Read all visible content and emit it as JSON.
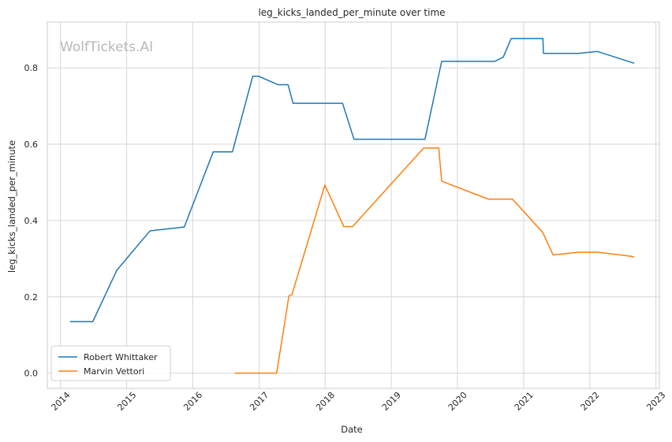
{
  "watermark": "WolfTickets.AI",
  "chart_data": {
    "type": "line",
    "title": "leg_kicks_landed_per_minute over time",
    "xlabel": "Date",
    "ylabel": "leg_kicks_landed_per_minute",
    "xlim": [
      "2013-10-20",
      "2023-01-20"
    ],
    "ylim": [
      -0.04,
      0.92
    ],
    "x_ticks": [
      "2014",
      "2015",
      "2016",
      "2017",
      "2018",
      "2019",
      "2020",
      "2021",
      "2022",
      "2023"
    ],
    "y_ticks": [
      "0.0",
      "0.2",
      "0.4",
      "0.6",
      "0.8"
    ],
    "grid": true,
    "legend_position": "lower-left",
    "series": [
      {
        "name": "Robert Whittaker",
        "color": "#1f77b4",
        "points": [
          [
            "2014-02-22",
            0.135
          ],
          [
            "2014-06-28",
            0.135
          ],
          [
            "2014-11-08",
            0.27
          ],
          [
            "2015-05-10",
            0.373
          ],
          [
            "2015-11-15",
            0.383
          ],
          [
            "2016-04-23",
            0.58
          ],
          [
            "2016-08-07",
            0.58
          ],
          [
            "2016-11-27",
            0.778
          ],
          [
            "2016-12-30",
            0.778
          ],
          [
            "2017-04-15",
            0.756
          ],
          [
            "2017-06-10",
            0.756
          ],
          [
            "2017-07-08",
            0.707
          ],
          [
            "2018-04-07",
            0.707
          ],
          [
            "2018-06-09",
            0.613
          ],
          [
            "2019-07-06",
            0.613
          ],
          [
            "2019-10-06",
            0.817
          ],
          [
            "2020-07-25",
            0.817
          ],
          [
            "2020-09-10",
            0.828
          ],
          [
            "2020-10-24",
            0.877
          ],
          [
            "2021-04-17",
            0.877
          ],
          [
            "2021-04-20",
            0.838
          ],
          [
            "2021-10-30",
            0.838
          ],
          [
            "2022-02-12",
            0.843
          ],
          [
            "2022-09-03",
            0.812
          ]
        ]
      },
      {
        "name": "Marvin Vettori",
        "color": "#ff7f0e",
        "points": [
          [
            "2016-08-20",
            0.0
          ],
          [
            "2017-04-08",
            0.0
          ],
          [
            "2017-06-15",
            0.203
          ],
          [
            "2017-07-01",
            0.205
          ],
          [
            "2017-12-30",
            0.493
          ],
          [
            "2018-04-14",
            0.384
          ],
          [
            "2018-06-01",
            0.384
          ],
          [
            "2019-06-29",
            0.59
          ],
          [
            "2019-09-20",
            0.59
          ],
          [
            "2019-10-06",
            0.503
          ],
          [
            "2020-06-20",
            0.456
          ],
          [
            "2020-10-31",
            0.456
          ],
          [
            "2021-04-10",
            0.372
          ],
          [
            "2021-04-17",
            0.368
          ],
          [
            "2021-06-12",
            0.31
          ],
          [
            "2021-10-30",
            0.317
          ],
          [
            "2022-02-12",
            0.317
          ],
          [
            "2022-08-20",
            0.306
          ],
          [
            "2022-09-03",
            0.304
          ]
        ]
      }
    ]
  }
}
